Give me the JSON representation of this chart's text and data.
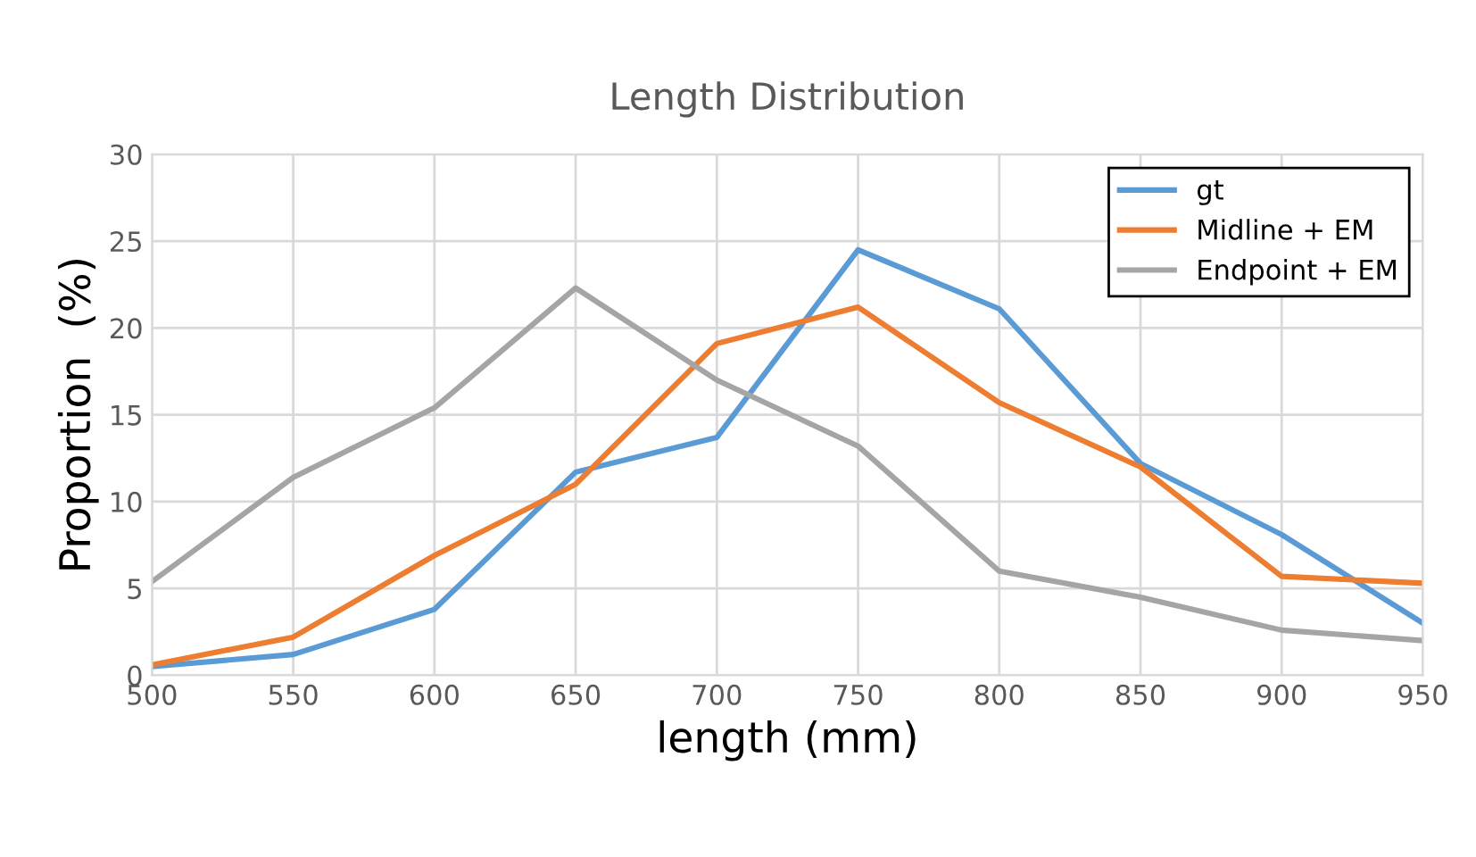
{
  "chart_data": {
    "type": "line",
    "title": "Length Distribution",
    "xlabel": "length (mm)",
    "ylabel": "Proportion  (%)",
    "x": [
      500,
      550,
      600,
      650,
      700,
      750,
      800,
      850,
      900,
      950
    ],
    "series": [
      {
        "name": "gt",
        "color": "#5b9bd5",
        "values": [
          0.5,
          1.2,
          3.8,
          11.7,
          13.7,
          24.5,
          21.1,
          12.2,
          8.1,
          3.0
        ]
      },
      {
        "name": "Midline + EM",
        "color": "#ed7d31",
        "values": [
          0.6,
          2.2,
          6.9,
          11.0,
          19.1,
          21.2,
          15.7,
          12.0,
          5.7,
          5.3
        ]
      },
      {
        "name": "Endpoint + EM",
        "color": "#a5a5a5",
        "values": [
          5.4,
          11.4,
          15.4,
          22.3,
          17.0,
          13.2,
          6.0,
          4.5,
          2.6,
          2.0
        ]
      }
    ],
    "xlim": [
      500,
      950
    ],
    "xticks": [
      500,
      550,
      600,
      650,
      700,
      750,
      800,
      850,
      900,
      950
    ],
    "ylim": [
      0,
      30
    ],
    "yticks": [
      0,
      5,
      10,
      15,
      20,
      25,
      30
    ],
    "grid": true,
    "legend": "top right",
    "line_style": "solid"
  }
}
